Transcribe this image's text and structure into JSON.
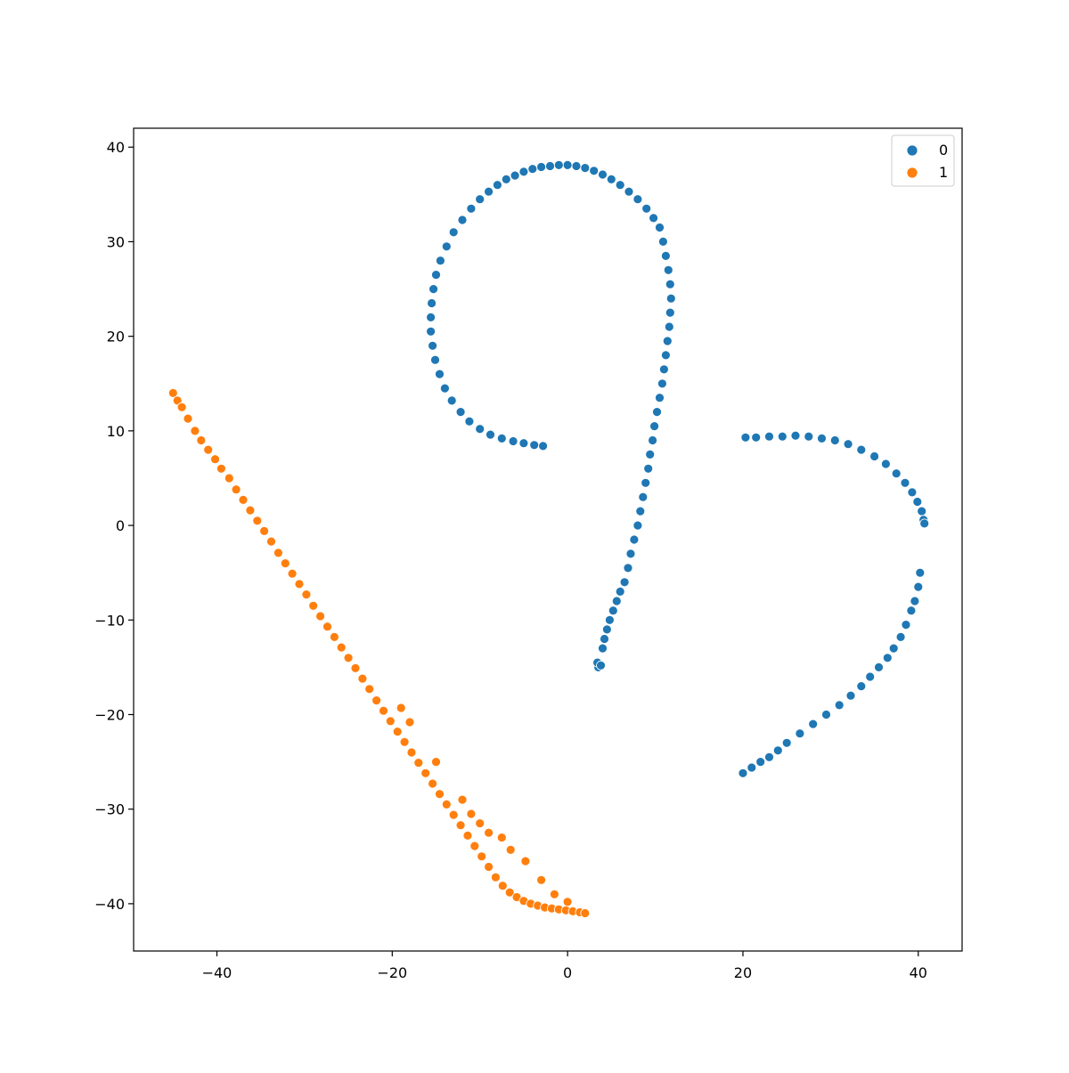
{
  "chart_data": {
    "type": "scatter",
    "title": "",
    "xlabel": "",
    "ylabel": "",
    "xlim": [
      -49.5,
      45
    ],
    "ylim": [
      -45,
      42
    ],
    "xticks": [
      -40,
      -20,
      0,
      20,
      40
    ],
    "yticks": [
      -40,
      -30,
      -20,
      -10,
      0,
      10,
      20,
      30,
      40
    ],
    "xtick_labels": [
      "−40",
      "−20",
      "0",
      "20",
      "40"
    ],
    "ytick_labels": [
      "−40",
      "−30",
      "−20",
      "−10",
      "0",
      "10",
      "20",
      "30",
      "40"
    ],
    "grid": false,
    "legend_position": "top-right",
    "series": [
      {
        "name": "0",
        "color": "#1f77b4",
        "points": [
          [
            3.5,
            -15
          ],
          [
            3.4,
            -14.5
          ],
          [
            3.8,
            -14.8
          ],
          [
            4.0,
            -13.0
          ],
          [
            4.2,
            -12.0
          ],
          [
            4.5,
            -11.0
          ],
          [
            4.8,
            -10.0
          ],
          [
            5.2,
            -9.0
          ],
          [
            5.6,
            -8.0
          ],
          [
            6.0,
            -7.0
          ],
          [
            6.5,
            -6.0
          ],
          [
            6.9,
            -4.5
          ],
          [
            7.2,
            -3.0
          ],
          [
            7.6,
            -1.5
          ],
          [
            8.0,
            0.0
          ],
          [
            8.3,
            1.5
          ],
          [
            8.6,
            3.0
          ],
          [
            8.9,
            4.5
          ],
          [
            9.2,
            6.0
          ],
          [
            9.4,
            7.5
          ],
          [
            9.7,
            9.0
          ],
          [
            9.9,
            10.5
          ],
          [
            10.2,
            12.0
          ],
          [
            10.5,
            13.5
          ],
          [
            10.8,
            15.0
          ],
          [
            11.0,
            16.5
          ],
          [
            11.2,
            18.0
          ],
          [
            11.4,
            19.5
          ],
          [
            11.6,
            21.0
          ],
          [
            11.7,
            22.5
          ],
          [
            11.8,
            24.0
          ],
          [
            11.7,
            25.5
          ],
          [
            11.5,
            27.0
          ],
          [
            11.2,
            28.5
          ],
          [
            10.9,
            30.0
          ],
          [
            10.5,
            31.5
          ],
          [
            9.8,
            32.5
          ],
          [
            9.0,
            33.5
          ],
          [
            8.0,
            34.5
          ],
          [
            7.0,
            35.3
          ],
          [
            6.0,
            36.0
          ],
          [
            5.0,
            36.6
          ],
          [
            4.0,
            37.1
          ],
          [
            3.0,
            37.5
          ],
          [
            2.0,
            37.8
          ],
          [
            1.0,
            38.0
          ],
          [
            0.0,
            38.1
          ],
          [
            -1.0,
            38.1
          ],
          [
            -2.0,
            38.0
          ],
          [
            -3.0,
            37.9
          ],
          [
            -4.0,
            37.7
          ],
          [
            -5.0,
            37.4
          ],
          [
            -6.0,
            37.0
          ],
          [
            -7.0,
            36.6
          ],
          [
            -8.0,
            36.0
          ],
          [
            -9.0,
            35.3
          ],
          [
            -10.0,
            34.5
          ],
          [
            -11.0,
            33.5
          ],
          [
            -12.0,
            32.3
          ],
          [
            -13.0,
            31.0
          ],
          [
            -13.8,
            29.5
          ],
          [
            -14.5,
            28.0
          ],
          [
            -15.0,
            26.5
          ],
          [
            -15.3,
            25.0
          ],
          [
            -15.5,
            23.5
          ],
          [
            -15.6,
            22.0
          ],
          [
            -15.6,
            20.5
          ],
          [
            -15.4,
            19.0
          ],
          [
            -15.1,
            17.5
          ],
          [
            -14.6,
            16.0
          ],
          [
            -14.0,
            14.5
          ],
          [
            -13.2,
            13.2
          ],
          [
            -12.2,
            12.0
          ],
          [
            -11.2,
            11.0
          ],
          [
            -10.0,
            10.2
          ],
          [
            -8.8,
            9.6
          ],
          [
            -7.5,
            9.2
          ],
          [
            -6.2,
            8.9
          ],
          [
            -5.0,
            8.7
          ],
          [
            -3.8,
            8.5
          ],
          [
            -2.8,
            8.4
          ],
          [
            20.3,
            9.3
          ],
          [
            21.5,
            9.3
          ],
          [
            23.0,
            9.4
          ],
          [
            24.5,
            9.4
          ],
          [
            26.0,
            9.5
          ],
          [
            27.5,
            9.4
          ],
          [
            29.0,
            9.2
          ],
          [
            30.5,
            9.0
          ],
          [
            32.0,
            8.6
          ],
          [
            33.5,
            8.0
          ],
          [
            35.0,
            7.3
          ],
          [
            36.3,
            6.5
          ],
          [
            37.5,
            5.5
          ],
          [
            38.5,
            4.5
          ],
          [
            39.3,
            3.5
          ],
          [
            39.9,
            2.5
          ],
          [
            40.4,
            1.5
          ],
          [
            40.6,
            0.6
          ],
          [
            40.7,
            0.2
          ],
          [
            40.2,
            -5.0
          ],
          [
            40.0,
            -6.5
          ],
          [
            39.6,
            -8.0
          ],
          [
            39.2,
            -9.0
          ],
          [
            38.6,
            -10.5
          ],
          [
            38.0,
            -11.8
          ],
          [
            37.2,
            -13.0
          ],
          [
            36.5,
            -14.0
          ],
          [
            35.5,
            -15.0
          ],
          [
            34.5,
            -16.0
          ],
          [
            33.5,
            -17.0
          ],
          [
            32.3,
            -18.0
          ],
          [
            31.0,
            -19.0
          ],
          [
            29.5,
            -20.0
          ],
          [
            28.0,
            -21.0
          ],
          [
            26.5,
            -22.0
          ],
          [
            25.0,
            -23.0
          ],
          [
            24.0,
            -23.8
          ],
          [
            23.0,
            -24.5
          ],
          [
            22.0,
            -25.0
          ],
          [
            21.0,
            -25.6
          ],
          [
            20.0,
            -26.2
          ]
        ]
      },
      {
        "name": "1",
        "color": "#ff7f0e",
        "points": [
          [
            -45.0,
            14.0
          ],
          [
            -44.5,
            13.2
          ],
          [
            -44.0,
            12.5
          ],
          [
            -43.3,
            11.3
          ],
          [
            -42.5,
            10.0
          ],
          [
            -41.8,
            9.0
          ],
          [
            -41.0,
            8.0
          ],
          [
            -40.2,
            7.0
          ],
          [
            -39.5,
            6.0
          ],
          [
            -38.6,
            5.0
          ],
          [
            -37.8,
            3.8
          ],
          [
            -37.0,
            2.7
          ],
          [
            -36.2,
            1.6
          ],
          [
            -35.4,
            0.5
          ],
          [
            -34.6,
            -0.6
          ],
          [
            -33.8,
            -1.7
          ],
          [
            -33.0,
            -2.9
          ],
          [
            -32.2,
            -4.0
          ],
          [
            -31.4,
            -5.1
          ],
          [
            -30.6,
            -6.2
          ],
          [
            -29.8,
            -7.3
          ],
          [
            -29.0,
            -8.5
          ],
          [
            -28.2,
            -9.6
          ],
          [
            -27.4,
            -10.7
          ],
          [
            -26.6,
            -11.8
          ],
          [
            -25.8,
            -12.9
          ],
          [
            -25.0,
            -14.0
          ],
          [
            -24.2,
            -15.1
          ],
          [
            -23.4,
            -16.2
          ],
          [
            -22.6,
            -17.3
          ],
          [
            -21.8,
            -18.5
          ],
          [
            -21.0,
            -19.6
          ],
          [
            -20.2,
            -20.7
          ],
          [
            -19.4,
            -21.8
          ],
          [
            -18.6,
            -22.9
          ],
          [
            -17.8,
            -24.0
          ],
          [
            -17.0,
            -25.1
          ],
          [
            -16.2,
            -26.2
          ],
          [
            -15.4,
            -27.3
          ],
          [
            -14.6,
            -28.4
          ],
          [
            -13.8,
            -29.5
          ],
          [
            -13.0,
            -30.6
          ],
          [
            -12.2,
            -31.7
          ],
          [
            -11.4,
            -32.8
          ],
          [
            -10.6,
            -33.9
          ],
          [
            -9.8,
            -35.0
          ],
          [
            -9.0,
            -36.1
          ],
          [
            -8.2,
            -37.2
          ],
          [
            -7.4,
            -38.1
          ],
          [
            -6.6,
            -38.8
          ],
          [
            -5.8,
            -39.3
          ],
          [
            -5.0,
            -39.7
          ],
          [
            -4.2,
            -40.0
          ],
          [
            -3.4,
            -40.2
          ],
          [
            -2.6,
            -40.4
          ],
          [
            -1.8,
            -40.5
          ],
          [
            -1.0,
            -40.6
          ],
          [
            -0.2,
            -40.7
          ],
          [
            0.6,
            -40.8
          ],
          [
            1.4,
            -40.9
          ],
          [
            2.0,
            -41.0
          ],
          [
            -19.0,
            -19.3
          ],
          [
            -18.0,
            -20.8
          ],
          [
            -15.0,
            -25.0
          ],
          [
            -12.0,
            -29.0
          ],
          [
            -11.0,
            -30.5
          ],
          [
            -10.0,
            -31.5
          ],
          [
            -9.0,
            -32.5
          ],
          [
            -7.5,
            -33.0
          ],
          [
            -6.5,
            -34.3
          ],
          [
            -4.8,
            -35.5
          ],
          [
            -3.0,
            -37.5
          ],
          [
            -1.5,
            -39.0
          ],
          [
            0.0,
            -39.8
          ]
        ]
      }
    ]
  }
}
